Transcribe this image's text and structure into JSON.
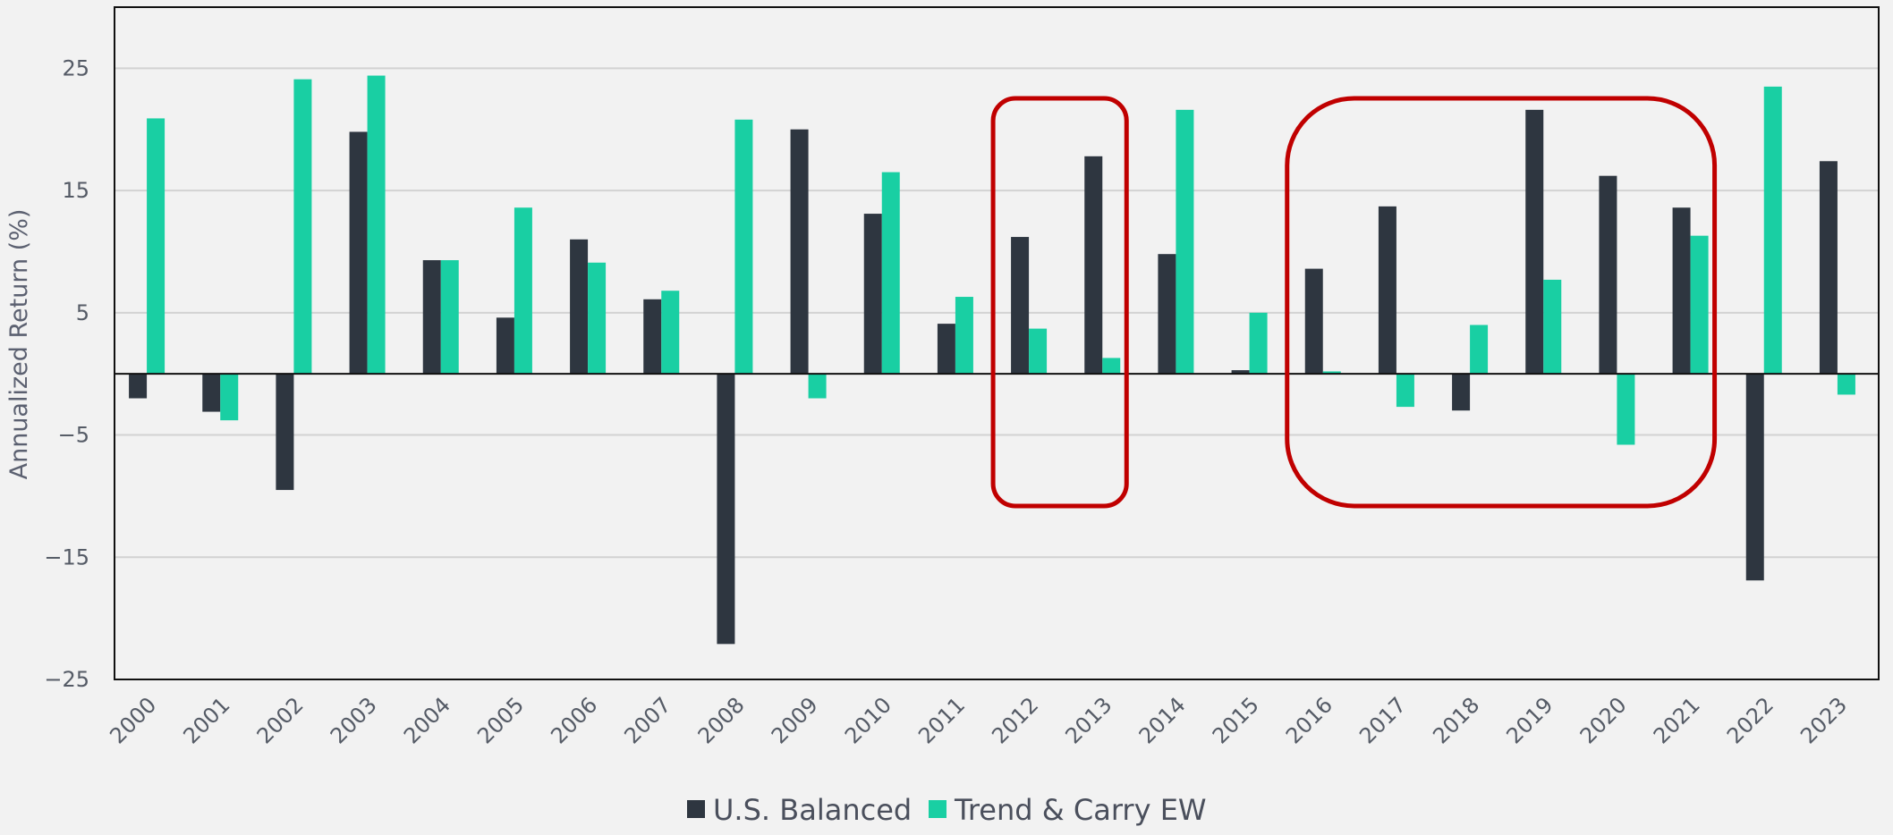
{
  "chart_data": {
    "type": "bar",
    "title": "",
    "xlabel": "",
    "ylabel": "Annualized Return (%)",
    "ylim": [
      -25,
      30
    ],
    "yticks": [
      25,
      15,
      5,
      -5,
      -15,
      -25
    ],
    "grid": true,
    "legend_position": "bottom-center",
    "categories": [
      "2000",
      "2001",
      "2002",
      "2003",
      "2004",
      "2005",
      "2006",
      "2007",
      "2008",
      "2009",
      "2010",
      "2011",
      "2012",
      "2013",
      "2014",
      "2015",
      "2016",
      "2017",
      "2018",
      "2019",
      "2020",
      "2021",
      "2022",
      "2023"
    ],
    "series": [
      {
        "name": "U.S. Balanced",
        "color": "#2e3640",
        "values": [
          -2.0,
          -3.1,
          -9.5,
          19.8,
          9.3,
          4.6,
          11.0,
          6.1,
          -22.1,
          20.0,
          13.1,
          4.1,
          11.2,
          17.8,
          9.8,
          0.3,
          8.6,
          13.7,
          -3.0,
          21.6,
          16.2,
          13.6,
          -16.9,
          17.4
        ]
      },
      {
        "name": "Trend & Carry EW",
        "color": "#19cfa3",
        "values": [
          20.9,
          -3.8,
          24.1,
          24.4,
          9.3,
          13.6,
          9.1,
          6.8,
          20.8,
          -2.0,
          16.5,
          6.3,
          3.7,
          1.3,
          21.6,
          5.0,
          0.2,
          -2.7,
          4.0,
          7.7,
          -5.8,
          11.3,
          23.5,
          -1.7
        ]
      }
    ],
    "highlights": [
      {
        "from": "2012",
        "to": "2013",
        "color": "#c00000"
      },
      {
        "from": "2016",
        "to": "2021",
        "color": "#c00000"
      }
    ]
  }
}
